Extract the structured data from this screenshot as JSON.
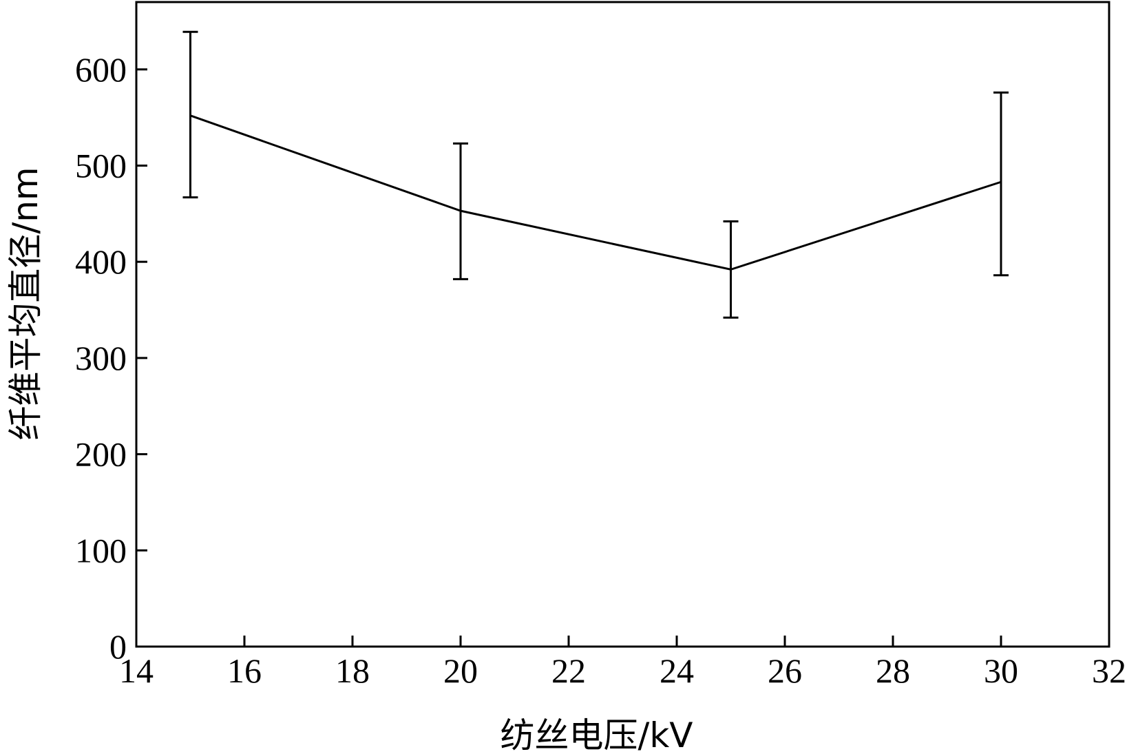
{
  "chart_data": {
    "type": "line",
    "title": "",
    "xlabel": "纺丝电压/kV",
    "ylabel": "纤维平均直径/nm",
    "xlim": [
      14,
      32
    ],
    "ylim": [
      0,
      670
    ],
    "xticks": [
      14,
      16,
      18,
      20,
      22,
      24,
      26,
      28,
      30,
      32
    ],
    "yticks": [
      0,
      100,
      200,
      300,
      400,
      500,
      600
    ],
    "grid": false,
    "legend": "none",
    "series": [
      {
        "x": [
          15,
          20,
          25,
          30
        ],
        "y": [
          552,
          453,
          392,
          483
        ],
        "error_low": [
          467,
          382,
          342,
          386
        ],
        "error_high": [
          639,
          523,
          442,
          576
        ],
        "color": "#000000"
      }
    ]
  }
}
